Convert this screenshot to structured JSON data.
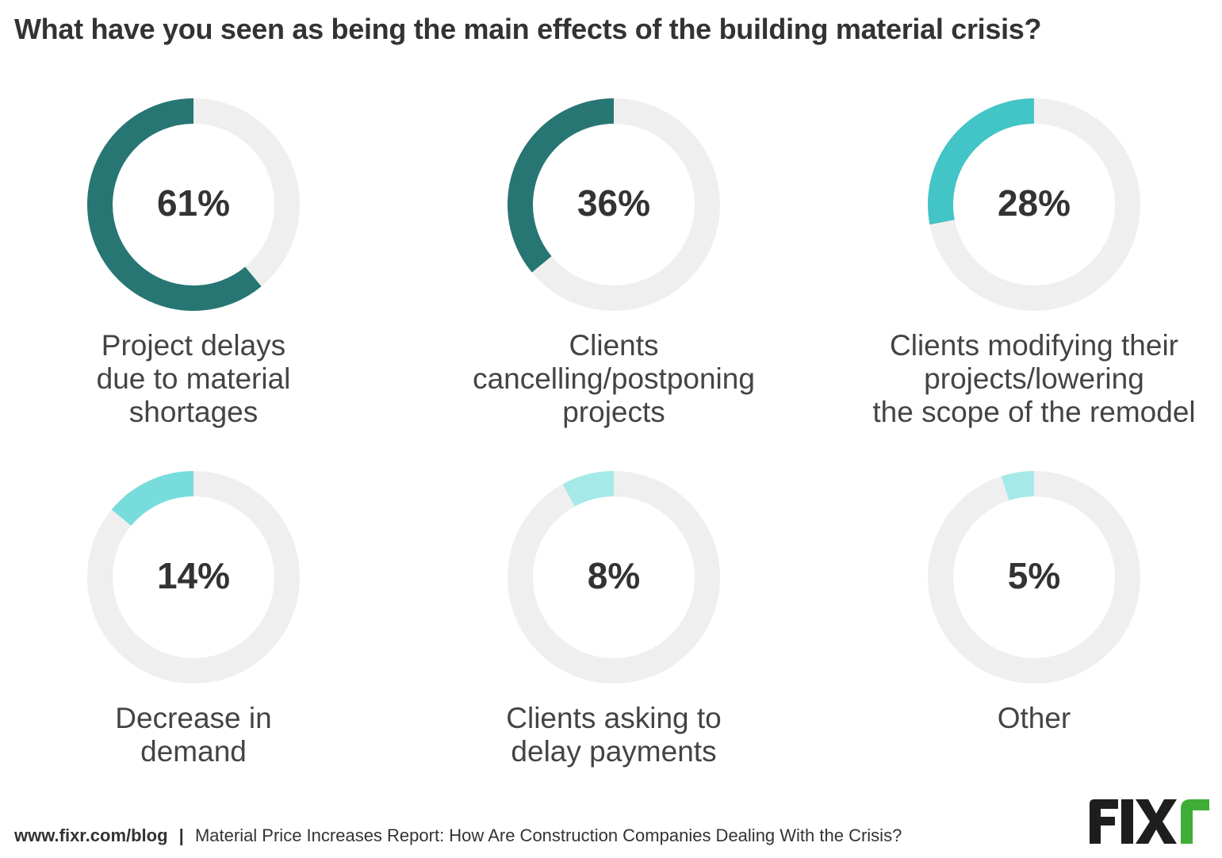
{
  "title": "What have you seen as being the main effects of the building material crisis?",
  "chart_data": {
    "type": "pie",
    "subtype": "donut-grid",
    "title": "What have you seen as being the main effects of the building material crisis?",
    "items": [
      {
        "value": 61,
        "pct_label": "61%",
        "label_lines": [
          "Project delays",
          "due to material",
          "shortages"
        ],
        "color": "#277674"
      },
      {
        "value": 36,
        "pct_label": "36%",
        "label_lines": [
          "Clients",
          "cancelling/postponing",
          "projects"
        ],
        "color": "#277674"
      },
      {
        "value": 28,
        "pct_label": "28%",
        "label_lines": [
          "Clients modifying their",
          "projects/lowering",
          "the scope of the remodel"
        ],
        "color": "#43c4c6"
      },
      {
        "value": 14,
        "pct_label": "14%",
        "label_lines": [
          "Decrease in",
          "demand"
        ],
        "color": "#78dcdc"
      },
      {
        "value": 8,
        "pct_label": "8%",
        "label_lines": [
          "Clients asking to",
          "delay payments"
        ],
        "color": "#a6e9e9"
      },
      {
        "value": 5,
        "pct_label": "5%",
        "label_lines": [
          "Other"
        ],
        "color": "#a6e9e9"
      }
    ],
    "track_color": "#efefef",
    "max": 100
  },
  "footer": {
    "site": "www.fixr.com/blog",
    "separator": "|",
    "report": "Material Price Increases Report: How Are Construction Companies Dealing With the Crisis?"
  },
  "logo": {
    "text": "FIXR",
    "brand_color": "#3fae37"
  }
}
